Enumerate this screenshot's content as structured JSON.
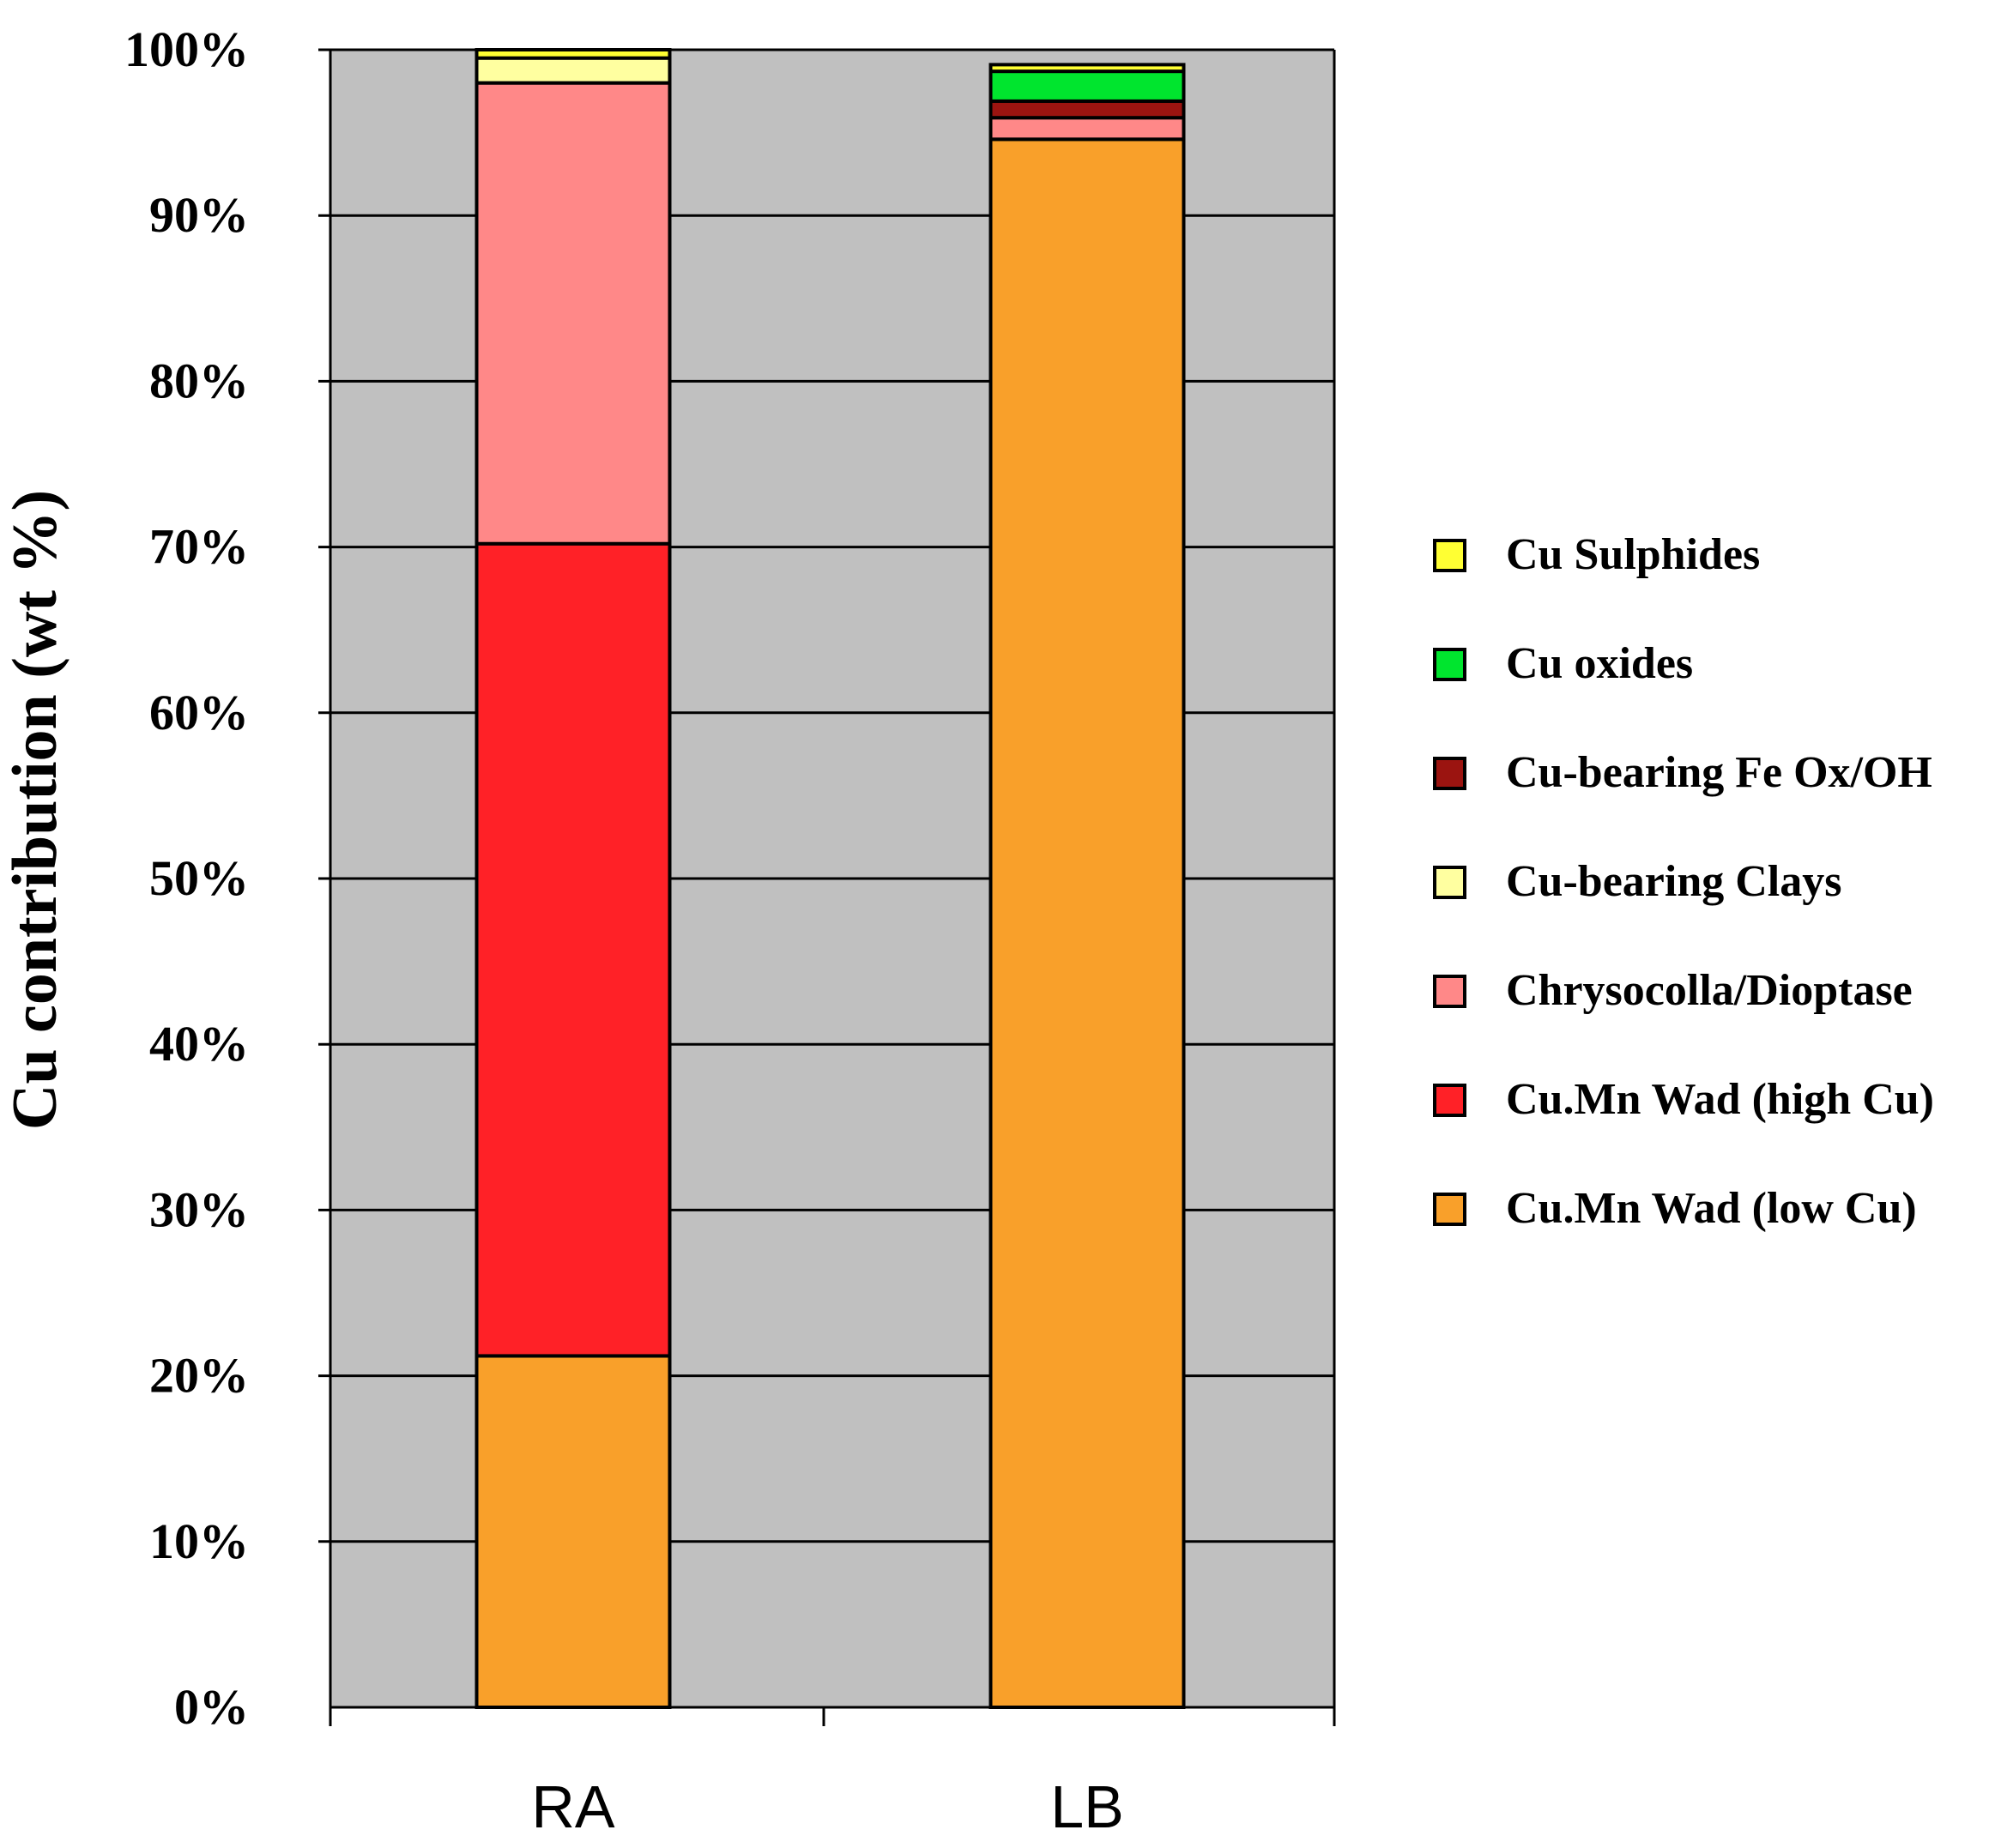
{
  "chart_data": {
    "type": "bar",
    "stacked": true,
    "normalized": true,
    "title": "",
    "xlabel": "",
    "ylabel": "Cu contribution (wt %)",
    "ylim": [
      0,
      100
    ],
    "yticks": [
      "0%",
      "10%",
      "20%",
      "30%",
      "40%",
      "50%",
      "60%",
      "70%",
      "80%",
      "90%",
      "100%"
    ],
    "categories": [
      "RA",
      "LB"
    ],
    "grid": true,
    "legend_position": "right",
    "series": [
      {
        "name": "Cu.Mn Wad (low Cu)",
        "color": "#F9A02A",
        "values": [
          21.2,
          94.6
        ]
      },
      {
        "name": "Cu.Mn Wad (high Cu)",
        "color": "#FF2127",
        "values": [
          49.0,
          0.0
        ]
      },
      {
        "name": "Chrysocolla/Dioptase",
        "color": "#FF8888",
        "values": [
          27.8,
          1.3
        ]
      },
      {
        "name": "Cu-bearing Clays",
        "color": "#FFFFA0",
        "values": [
          1.5,
          0.0
        ]
      },
      {
        "name": "Cu-bearing Fe Ox/OH",
        "color": "#9B1410",
        "values": [
          0.0,
          1.0
        ]
      },
      {
        "name": "Cu oxides",
        "color": "#00E52E",
        "values": [
          0.0,
          1.8
        ]
      },
      {
        "name": "Cu Sulphides",
        "color": "#FFFF33",
        "values": [
          0.5,
          0.4
        ]
      }
    ],
    "legend_order": [
      "Cu Sulphides",
      "Cu oxides",
      "Cu-bearing Fe Ox/OH",
      "Cu-bearing Clays",
      "Chrysocolla/Dioptase",
      "Cu.Mn Wad (high Cu)",
      "Cu.Mn Wad (low Cu)"
    ],
    "plot_background": "#C0C0C0"
  }
}
